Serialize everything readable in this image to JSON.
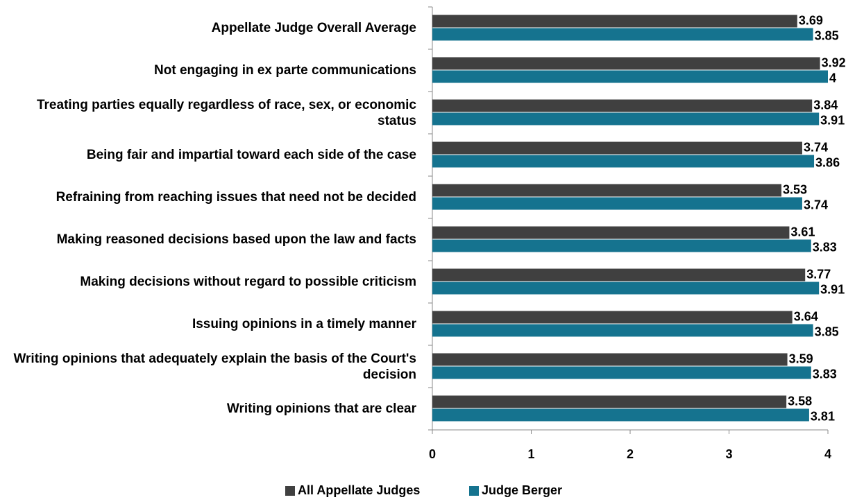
{
  "chart_data": {
    "type": "bar",
    "orientation": "horizontal",
    "categories": [
      "Appellate Judge Overall Average",
      "Not engaging in ex parte communications",
      "Treating parties equally regardless of race, sex, or economic status",
      "Being fair and impartial toward each side of the case",
      "Refraining from reaching issues that need not be decided",
      "Making reasoned decisions based upon the law and facts",
      "Making decisions without regard to possible criticism",
      "Issuing opinions in a timely manner",
      "Writing opinions that adequately explain the basis of the Court's decision",
      "Writing opinions that are clear"
    ],
    "series": [
      {
        "name": "All Appellate Judges",
        "color": "#404040",
        "values": [
          3.69,
          3.92,
          3.84,
          3.74,
          3.53,
          3.61,
          3.77,
          3.64,
          3.59,
          3.58
        ]
      },
      {
        "name": "Judge Berger",
        "color": "#15738f",
        "values": [
          3.85,
          4,
          3.91,
          3.86,
          3.74,
          3.83,
          3.91,
          3.85,
          3.83,
          3.81
        ]
      }
    ],
    "xlim": [
      0,
      4
    ],
    "xticks": [
      0,
      1,
      2,
      3,
      4
    ],
    "legend": "bottom"
  }
}
